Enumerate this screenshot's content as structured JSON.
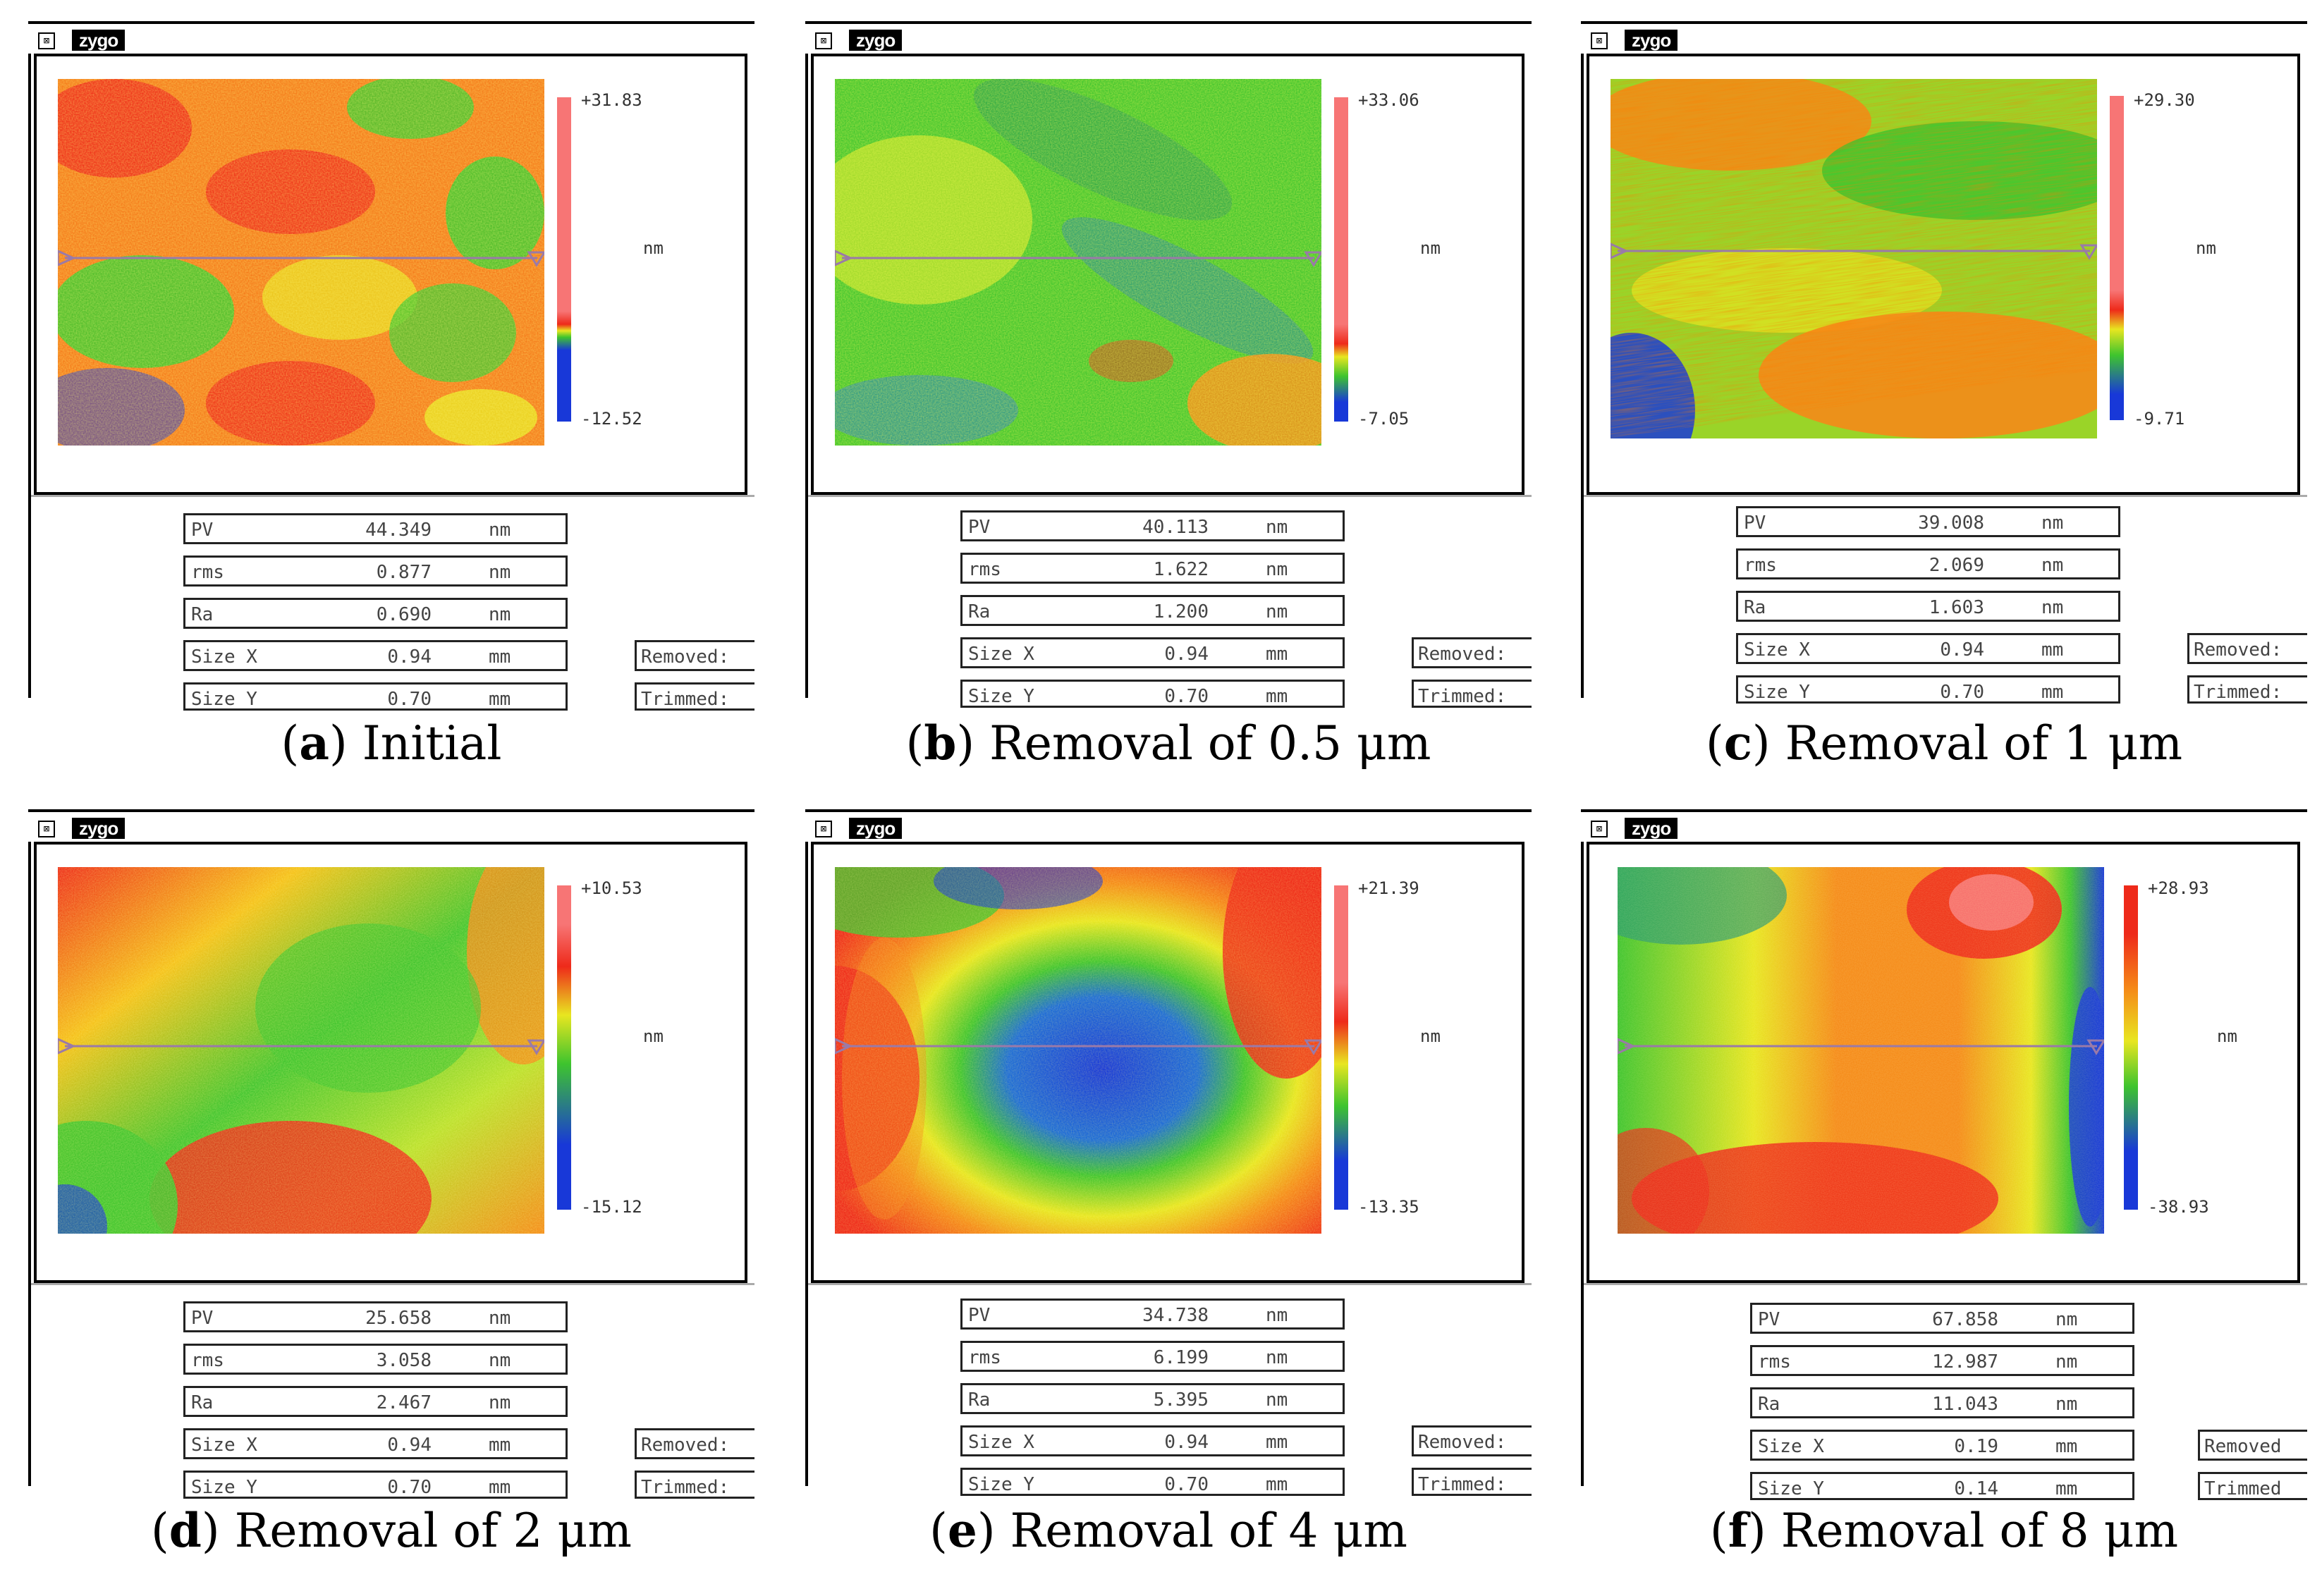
{
  "colors": {
    "red": "#ee2a1a",
    "orange": "#f58a18",
    "yellow": "#e8e620",
    "green": "#3ec42e",
    "blue": "#1838d8",
    "pink": "#f77575",
    "line": "#9a7aa8"
  },
  "panels": [
    {
      "app": {
        "sys_icon": "⊠",
        "brand": "zygo"
      },
      "scale": {
        "max": "+31.83",
        "min": "-12.52",
        "unit": "nm"
      },
      "stats": [
        {
          "key": "PV",
          "value": "44.349",
          "unit": "nm"
        },
        {
          "key": "rms",
          "value": "0.877",
          "unit": "nm"
        },
        {
          "key": "Ra",
          "value": "0.690",
          "unit": "nm"
        },
        {
          "key": "Size X",
          "value": "0.94",
          "unit": "mm"
        },
        {
          "key": "Size Y",
          "value": "0.70",
          "unit": "mm"
        }
      ],
      "removed_label": "Removed:",
      "trimmed_label": "Trimmed:",
      "caption": {
        "letter": "a",
        "text": "Initial"
      }
    },
    {
      "app": {
        "sys_icon": "⊠",
        "brand": "zygo"
      },
      "scale": {
        "max": "+33.06",
        "min": "-7.05",
        "unit": "nm"
      },
      "stats": [
        {
          "key": "PV",
          "value": "40.113",
          "unit": "nm"
        },
        {
          "key": "rms",
          "value": "1.622",
          "unit": "nm"
        },
        {
          "key": "Ra",
          "value": "1.200",
          "unit": "nm"
        },
        {
          "key": "Size X",
          "value": "0.94",
          "unit": "mm"
        },
        {
          "key": "Size Y",
          "value": "0.70",
          "unit": "mm"
        }
      ],
      "removed_label": "Removed:",
      "trimmed_label": "Trimmed:",
      "caption": {
        "letter": "b",
        "text": "Removal of 0.5 μm"
      }
    },
    {
      "app": {
        "sys_icon": "⊠",
        "brand": "zygo"
      },
      "scale": {
        "max": "+29.30",
        "min": "-9.71",
        "unit": "nm"
      },
      "stats": [
        {
          "key": "PV",
          "value": "39.008",
          "unit": "nm"
        },
        {
          "key": "rms",
          "value": "2.069",
          "unit": "nm"
        },
        {
          "key": "Ra",
          "value": "1.603",
          "unit": "nm"
        },
        {
          "key": "Size X",
          "value": "0.94",
          "unit": "mm"
        },
        {
          "key": "Size Y",
          "value": "0.70",
          "unit": "mm"
        }
      ],
      "removed_label": "Removed:",
      "trimmed_label": "Trimmed:",
      "caption": {
        "letter": "c",
        "text": "Removal of 1 μm"
      }
    },
    {
      "app": {
        "sys_icon": "⊠",
        "brand": "zygo"
      },
      "scale": {
        "max": "+10.53",
        "min": "-15.12",
        "unit": "nm"
      },
      "stats": [
        {
          "key": "PV",
          "value": "25.658",
          "unit": "nm"
        },
        {
          "key": "rms",
          "value": "3.058",
          "unit": "nm"
        },
        {
          "key": "Ra",
          "value": "2.467",
          "unit": "nm"
        },
        {
          "key": "Size X",
          "value": "0.94",
          "unit": "mm"
        },
        {
          "key": "Size Y",
          "value": "0.70",
          "unit": "mm"
        }
      ],
      "removed_label": "Removed:",
      "trimmed_label": "Trimmed:",
      "caption": {
        "letter": "d",
        "text": "Removal of 2 μm"
      }
    },
    {
      "app": {
        "sys_icon": "⊠",
        "brand": "zygo"
      },
      "scale": {
        "max": "+21.39",
        "min": "-13.35",
        "unit": "nm"
      },
      "stats": [
        {
          "key": "PV",
          "value": "34.738",
          "unit": "nm"
        },
        {
          "key": "rms",
          "value": "6.199",
          "unit": "nm"
        },
        {
          "key": "Ra",
          "value": "5.395",
          "unit": "nm"
        },
        {
          "key": "Size X",
          "value": "0.94",
          "unit": "mm"
        },
        {
          "key": "Size Y",
          "value": "0.70",
          "unit": "mm"
        }
      ],
      "removed_label": "Removed:",
      "trimmed_label": "Trimmed:",
      "caption": {
        "letter": "e",
        "text": "Removal of 4 μm"
      }
    },
    {
      "app": {
        "sys_icon": "⊠",
        "brand": "zygo"
      },
      "scale": {
        "max": "+28.93",
        "min": "-38.93",
        "unit": "nm"
      },
      "stats": [
        {
          "key": "PV",
          "value": "67.858",
          "unit": "nm"
        },
        {
          "key": "rms",
          "value": "12.987",
          "unit": "nm"
        },
        {
          "key": "Ra",
          "value": "11.043",
          "unit": "nm"
        },
        {
          "key": "Size X",
          "value": "0.19",
          "unit": "mm"
        },
        {
          "key": "Size Y",
          "value": "0.14",
          "unit": "mm"
        }
      ],
      "removed_label": "Removed",
      "trimmed_label": "Trimmed",
      "caption": {
        "letter": "f",
        "text": "Removal of 8 μm"
      }
    }
  ]
}
